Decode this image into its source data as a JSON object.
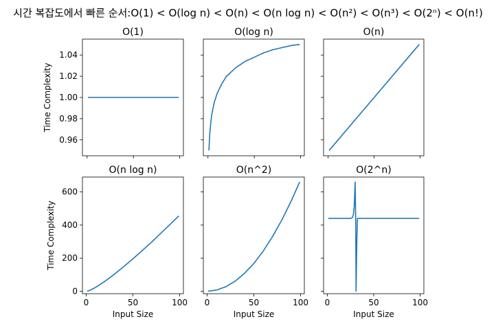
{
  "suptitle": "시간 복잡도에서 빠른 순서:O(1) < O(log n) < O(n) < O(n log n) < O(n²) < O(n³) < O(2ⁿ) < O(n!)",
  "line_color": "#1f77b4",
  "chart_data": [
    {
      "type": "line",
      "title": "O(1)",
      "xlabel": "",
      "ylabel": "Time Complexity",
      "xlim": [
        -5,
        104
      ],
      "ylim": [
        0.945,
        1.055
      ],
      "xticks": [
        0,
        50,
        100
      ],
      "xticklabels": [],
      "yticks": [
        0.96,
        0.98,
        1.0,
        1.02,
        1.04
      ],
      "yticklabels": [
        "0.96",
        "0.98",
        "1.00",
        "1.02",
        "1.04"
      ],
      "series": [
        {
          "x": [
            1,
            99
          ],
          "y": [
            1.0,
            1.0
          ]
        }
      ]
    },
    {
      "type": "line",
      "title": "O(log n)",
      "xlabel": "",
      "ylabel": "",
      "xlim": [
        -5,
        104
      ],
      "ylim": [
        0.945,
        1.055
      ],
      "xticks": [
        0,
        50,
        100
      ],
      "xticklabels": [],
      "yticks": [
        0.96,
        0.98,
        1.0,
        1.02,
        1.04
      ],
      "yticklabels": [],
      "series": [
        {
          "x": [
            1,
            2,
            3,
            4,
            5,
            7,
            10,
            15,
            20,
            30,
            40,
            50,
            60,
            70,
            80,
            90,
            99
          ],
          "y": [
            0.95,
            0.966,
            0.976,
            0.983,
            0.988,
            0.996,
            1.004,
            1.013,
            1.02,
            1.028,
            1.034,
            1.038,
            1.042,
            1.045,
            1.047,
            1.049,
            1.05
          ]
        }
      ]
    },
    {
      "type": "line",
      "title": "O(n)",
      "xlabel": "",
      "ylabel": "",
      "xlim": [
        -5,
        104
      ],
      "ylim": [
        0.945,
        1.055
      ],
      "xticks": [
        0,
        50,
        100
      ],
      "xticklabels": [],
      "yticks": [
        0.96,
        0.98,
        1.0,
        1.02,
        1.04
      ],
      "yticklabels": [],
      "series": [
        {
          "x": [
            1,
            99
          ],
          "y": [
            0.95,
            1.05
          ]
        }
      ]
    },
    {
      "type": "line",
      "title": "O(n log n)",
      "xlabel": "Input Size",
      "ylabel": "Time Complexity",
      "xlim": [
        -4,
        104
      ],
      "ylim": [
        -15,
        690
      ],
      "xticks": [
        0,
        50,
        100
      ],
      "xticklabels": [
        "0",
        "50",
        "100"
      ],
      "yticks": [
        0,
        200,
        400,
        600
      ],
      "yticklabels": [
        "0",
        "200",
        "400",
        "600"
      ],
      "series": [
        {
          "x": [
            1,
            5,
            10,
            20,
            30,
            40,
            50,
            60,
            70,
            80,
            90,
            99
          ],
          "y": [
            0,
            8,
            23,
            60,
            102,
            148,
            196,
            246,
            297,
            351,
            405,
            455
          ]
        }
      ]
    },
    {
      "type": "line",
      "title": "O(n^2)",
      "xlabel": "Input Size",
      "ylabel": "",
      "xlim": [
        -4,
        104
      ],
      "ylim": [
        -15,
        690
      ],
      "xticks": [
        0,
        50,
        100
      ],
      "xticklabels": [
        "0",
        "50",
        "100"
      ],
      "yticks": [
        0,
        200,
        400,
        600
      ],
      "yticklabels": [],
      "series": [
        {
          "x": [
            1,
            10,
            20,
            30,
            40,
            50,
            60,
            70,
            80,
            90,
            99
          ],
          "y": [
            0,
            7,
            27,
            61,
            108,
            168,
            242,
            330,
            431,
            545,
            660
          ]
        }
      ]
    },
    {
      "type": "line",
      "title": "O(2^n)",
      "xlabel": "Input Size",
      "ylabel": "",
      "xlim": [
        -4,
        104
      ],
      "ylim": [
        -15,
        690
      ],
      "xticks": [
        0,
        50,
        100
      ],
      "xticklabels": [
        "0",
        "50",
        "100"
      ],
      "yticks": [
        0,
        200,
        400,
        600
      ],
      "yticklabels": [],
      "series": [
        {
          "x": [
            1,
            25,
            27,
            28,
            29,
            30,
            30.6,
            31,
            31.8,
            32.5,
            60,
            99
          ],
          "y": [
            440,
            440,
            445,
            460,
            510,
            660,
            420,
            0,
            300,
            440,
            440,
            440
          ]
        }
      ]
    }
  ]
}
